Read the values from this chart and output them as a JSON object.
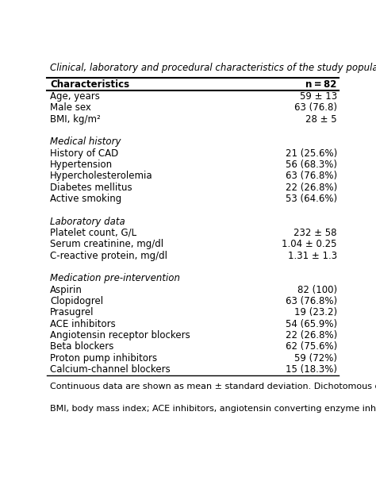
{
  "title": "Clinical, laboratory and procedural characteristics of the study population.",
  "header_left": "Characteristics",
  "header_right": "n = 82",
  "rows": [
    {
      "label": "Age, years",
      "value": "59 ± 13",
      "italic": false
    },
    {
      "label": "Male sex",
      "value": "63 (76.8)",
      "italic": false
    },
    {
      "label": "BMI, kg/m²",
      "value": "28 ± 5",
      "italic": false
    },
    {
      "label": "",
      "value": "",
      "italic": false
    },
    {
      "label": "Medical history",
      "value": "",
      "italic": true
    },
    {
      "label": "History of CAD",
      "value": "21 (25.6%)",
      "italic": false
    },
    {
      "label": "Hypertension",
      "value": "56 (68.3%)",
      "italic": false
    },
    {
      "label": "Hypercholesterolemia",
      "value": "63 (76.8%)",
      "italic": false
    },
    {
      "label": "Diabetes mellitus",
      "value": "22 (26.8%)",
      "italic": false
    },
    {
      "label": "Active smoking",
      "value": "53 (64.6%)",
      "italic": false
    },
    {
      "label": "",
      "value": "",
      "italic": false
    },
    {
      "label": "Laboratory data",
      "value": "",
      "italic": true
    },
    {
      "label": "Platelet count, G/L",
      "value": "232 ± 58",
      "italic": false
    },
    {
      "label": "Serum creatinine, mg/dl",
      "value": "1.04 ± 0.25",
      "italic": false
    },
    {
      "label": "C-reactive protein, mg/dl",
      "value": "1.31 ± 1.3",
      "italic": false
    },
    {
      "label": "",
      "value": "",
      "italic": false
    },
    {
      "label": "Medication pre-intervention",
      "value": "",
      "italic": true
    },
    {
      "label": "Aspirin",
      "value": "82 (100)",
      "italic": false
    },
    {
      "label": "Clopidogrel",
      "value": "63 (76.8%)",
      "italic": false
    },
    {
      "label": "Prasugrel",
      "value": "19 (23.2)",
      "italic": false
    },
    {
      "label": "ACE inhibitors",
      "value": "54 (65.9%)",
      "italic": false
    },
    {
      "label": "Angiotensin receptor blockers",
      "value": "22 (26.8%)",
      "italic": false
    },
    {
      "label": "Beta blockers",
      "value": "62 (75.6%)",
      "italic": false
    },
    {
      "label": "Proton pump inhibitors",
      "value": "59 (72%)",
      "italic": false
    },
    {
      "label": "Calcium-channel blockers",
      "value": "15 (18.3%)",
      "italic": false
    }
  ],
  "footnote1": "Continuous data are shown as mean ± standard deviation. Dichotomous data are shown as n (%).",
  "footnote2": "BMI, body mass index; ACE inhibitors, angiotensin converting enzyme inhibitors.",
  "bg_color": "#ffffff",
  "text_color": "#000000",
  "font_size": 8.5,
  "header_font_size": 8.5,
  "title_font_size": 8.5,
  "footnote_font_size": 8.0
}
